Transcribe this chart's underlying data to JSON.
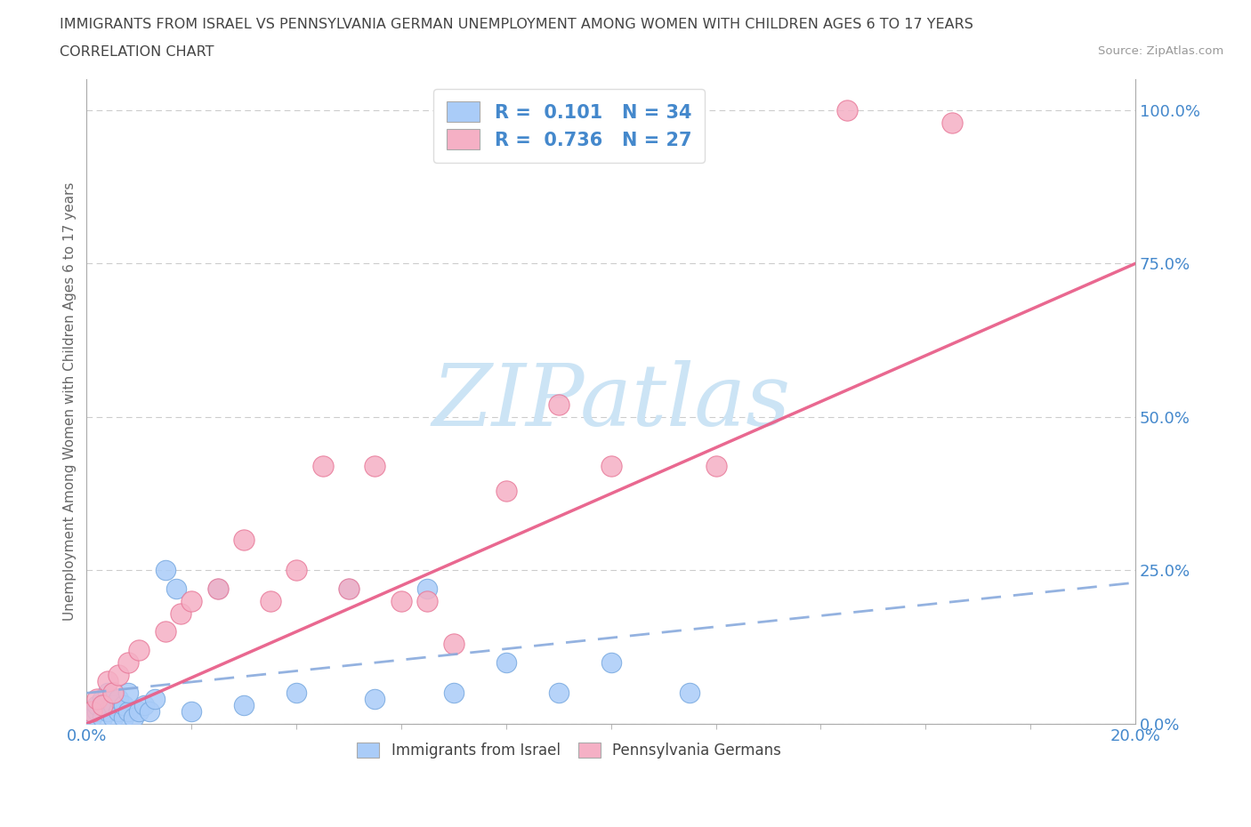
{
  "title_line1": "IMMIGRANTS FROM ISRAEL VS PENNSYLVANIA GERMAN UNEMPLOYMENT AMONG WOMEN WITH CHILDREN AGES 6 TO 17 YEARS",
  "title_line2": "CORRELATION CHART",
  "source": "Source: ZipAtlas.com",
  "ylabel": "Unemployment Among Women with Children Ages 6 to 17 years",
  "xlim": [
    0.0,
    0.2
  ],
  "ylim": [
    0.0,
    1.05
  ],
  "y_ticks": [
    0.0,
    0.25,
    0.5,
    0.75,
    1.0
  ],
  "y_tick_labels": [
    "0.0%",
    "25.0%",
    "50.0%",
    "75.0%",
    "100.0%"
  ],
  "x_tick_labels": [
    "0.0%",
    "20.0%"
  ],
  "R_israel": 0.101,
  "N_israel": 34,
  "R_pagerman": 0.736,
  "N_pagerman": 27,
  "color_israel_fill": "#aaccf8",
  "color_israel_edge": "#7aaae0",
  "color_pagerman_fill": "#f5b0c5",
  "color_pagerman_edge": "#e87898",
  "color_blue_line": "#88aadd",
  "color_pink_line": "#e8608a",
  "background_color": "#ffffff",
  "grid_color": "#cccccc",
  "watermark_text": "ZIPatlas",
  "watermark_color": "#cce4f5",
  "title_color": "#444444",
  "axis_label_color": "#666666",
  "tick_color": "#4488cc",
  "legend_text_color": "#4488cc",
  "source_color": "#999999",
  "blue_x": [
    0.001,
    0.002,
    0.002,
    0.003,
    0.003,
    0.004,
    0.004,
    0.005,
    0.005,
    0.006,
    0.006,
    0.007,
    0.007,
    0.008,
    0.008,
    0.009,
    0.01,
    0.011,
    0.012,
    0.013,
    0.015,
    0.017,
    0.02,
    0.025,
    0.03,
    0.04,
    0.05,
    0.055,
    0.065,
    0.07,
    0.08,
    0.09,
    0.1,
    0.115
  ],
  "blue_y": [
    0.01,
    0.02,
    0.03,
    0.01,
    0.04,
    0.02,
    0.05,
    0.01,
    0.03,
    0.02,
    0.04,
    0.01,
    0.03,
    0.02,
    0.05,
    0.01,
    0.02,
    0.03,
    0.02,
    0.04,
    0.25,
    0.22,
    0.02,
    0.22,
    0.03,
    0.05,
    0.22,
    0.04,
    0.22,
    0.05,
    0.1,
    0.05,
    0.1,
    0.05
  ],
  "pink_x": [
    0.001,
    0.002,
    0.003,
    0.004,
    0.005,
    0.006,
    0.008,
    0.01,
    0.015,
    0.018,
    0.02,
    0.025,
    0.03,
    0.035,
    0.04,
    0.045,
    0.05,
    0.055,
    0.06,
    0.065,
    0.07,
    0.08,
    0.09,
    0.1,
    0.12,
    0.145,
    0.165
  ],
  "pink_y": [
    0.02,
    0.04,
    0.03,
    0.07,
    0.05,
    0.08,
    0.1,
    0.12,
    0.15,
    0.18,
    0.2,
    0.22,
    0.3,
    0.2,
    0.25,
    0.42,
    0.22,
    0.42,
    0.2,
    0.2,
    0.13,
    0.38,
    0.52,
    0.42,
    0.42,
    1.0,
    0.98
  ],
  "blue_trend_y0": 0.05,
  "blue_trend_y1": 0.23,
  "pink_trend_y0": 0.0,
  "pink_trend_y1": 0.75
}
